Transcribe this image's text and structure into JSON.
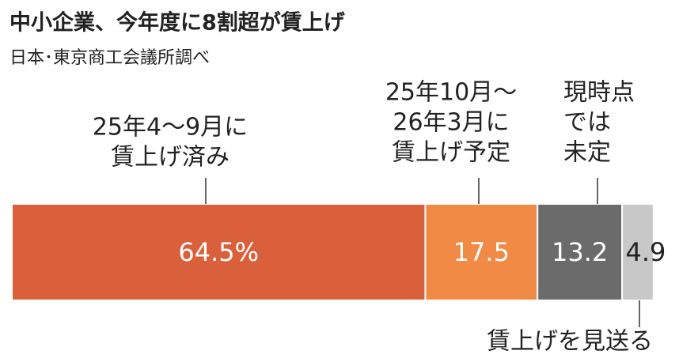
{
  "chart_data": {
    "type": "stacked-bar",
    "title": "中小企業、今年度に8割超が賃上げ",
    "subtitle": "日本･東京商工会議所調べ",
    "xlim": [
      0,
      100
    ],
    "series": [
      {
        "name": [
          "25年4〜9月に",
          "賃上げ済み"
        ],
        "color": "#d9603b",
        "values": [
          64.5
        ],
        "value_labels": [
          "64.5%"
        ]
      },
      {
        "name": [
          "25年10月〜",
          "26年3月に",
          "賃上げ予定"
        ],
        "color": "#f08a45",
        "values": [
          17.5
        ],
        "value_labels": [
          "17.5"
        ]
      },
      {
        "name": [
          "現時点",
          "では",
          "未定"
        ],
        "color": "#6b6b6b",
        "values": [
          13.2
        ],
        "value_labels": [
          "13.2"
        ]
      },
      {
        "name": [
          "賃上げを見送る"
        ],
        "color": "#c8c8c8",
        "values": [
          4.9
        ],
        "value_labels": [
          "4.9"
        ]
      }
    ]
  }
}
